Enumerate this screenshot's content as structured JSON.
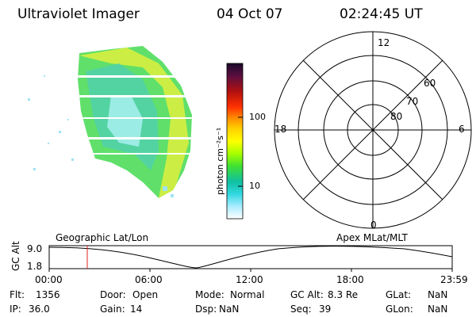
{
  "header": {
    "instrument": "Ultraviolet Imager",
    "date": "04 Oct 07",
    "time": "02:24:45 UT"
  },
  "colorbar": {
    "label": "photon cm⁻²s⁻¹",
    "ticks": [
      "100",
      "10"
    ],
    "colors": [
      "#1a0a2a",
      "#3a0f4a",
      "#6a1030",
      "#a01010",
      "#d01010",
      "#ff3000",
      "#ff7a00",
      "#ffc000",
      "#ffff00",
      "#c8ff00",
      "#80ff00",
      "#40e030",
      "#10c080",
      "#10d0d0",
      "#40e0e0",
      "#90e8ff",
      "#c8f0ff",
      "#ffffff"
    ]
  },
  "polar": {
    "mlt_labels": {
      "top": "12",
      "left": "18",
      "right": "6",
      "bottom": "0"
    },
    "lat_labels": [
      "60",
      "70",
      "80"
    ]
  },
  "altitude_plot": {
    "axis_label": "GC Alt",
    "y_max": "9.0",
    "y_min": "1.8",
    "left_title": "Geographic Lat/Lon",
    "right_title": "Apex  MLat/MLT",
    "x_ticks": [
      "00:00",
      "06:00",
      "12:00",
      "18:00",
      "23:59"
    ],
    "marker_time": "02:24:45"
  },
  "status": {
    "row1": [
      {
        "key": "Flt:",
        "value": "1356"
      },
      {
        "key": "Door:",
        "value": "Open"
      },
      {
        "key": "Mode:",
        "value": "Normal"
      },
      {
        "key": "GC Alt:",
        "value": "8.3 Re"
      },
      {
        "key": "GLat:",
        "value": "NaN"
      }
    ],
    "row2": [
      {
        "key": "IP:",
        "value": "36.0"
      },
      {
        "key": "Gain:",
        "value": "14"
      },
      {
        "key": "Dsp:",
        "value": "NaN"
      },
      {
        "key": "Seq:",
        "value": "39"
      },
      {
        "key": "GLon:",
        "value": "NaN"
      }
    ]
  }
}
